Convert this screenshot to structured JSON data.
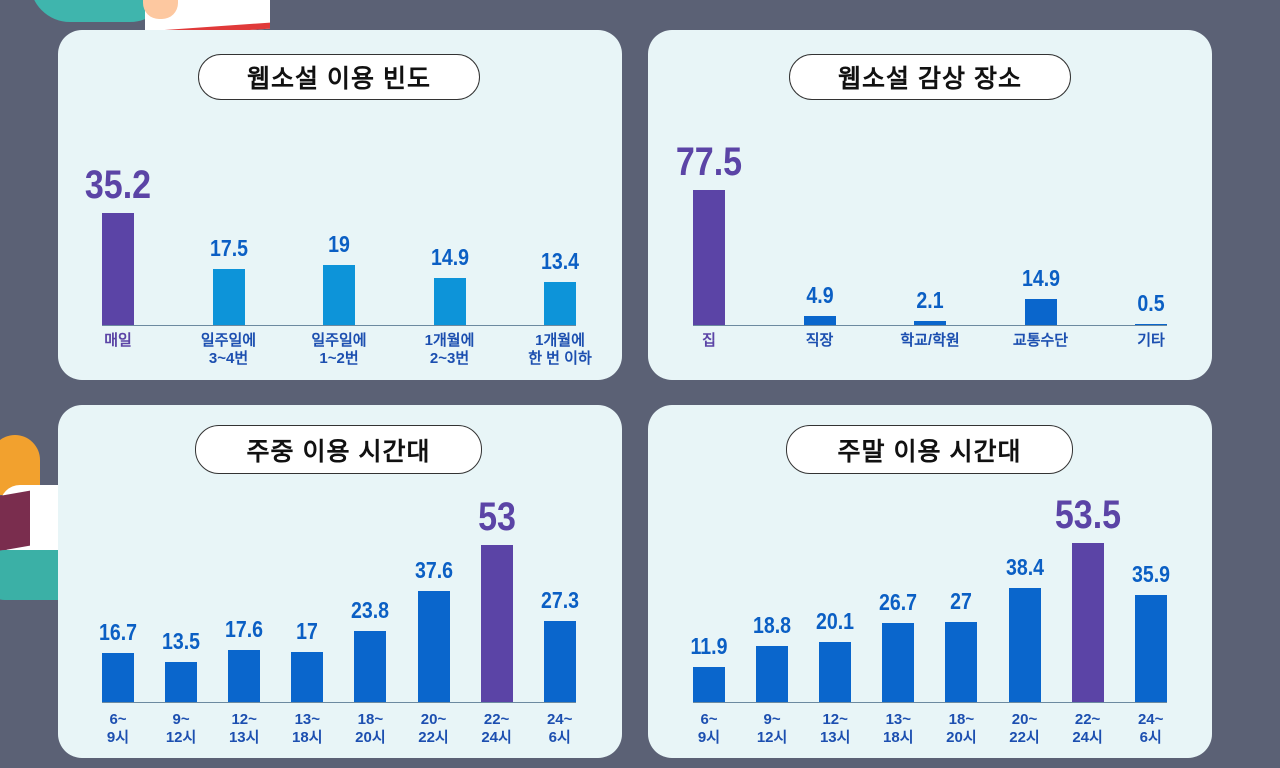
{
  "colors": {
    "highlight": "#5b44a6",
    "bar_light": "#0d94d9",
    "bar_dark": "#0a66cc",
    "label": "#1c4fb0"
  },
  "chart_data": [
    {
      "type": "bar",
      "title": "웹소설 이용 빈도",
      "categories": [
        "매일",
        "일주일에\n3~4번",
        "일주일에\n1~2번",
        "1개월에\n2~3번",
        "1개월에\n한 번 이하"
      ],
      "values": [
        35.2,
        17.5,
        19,
        14.9,
        13.4
      ],
      "value_labels": [
        "35.2",
        "17.5",
        "19",
        "14.9",
        "13.4"
      ],
      "highlight_index": 0
    },
    {
      "type": "bar",
      "title": "웹소설 감상 장소",
      "categories": [
        "집",
        "직장",
        "학교/학원",
        "교통수단",
        "기타"
      ],
      "values": [
        77.5,
        4.9,
        2.1,
        14.9,
        0.5
      ],
      "value_labels": [
        "77.5",
        "4.9",
        "2.1",
        "14.9",
        "0.5"
      ],
      "highlight_index": 0
    },
    {
      "type": "bar",
      "title": "주중 이용 시간대",
      "categories": [
        "6~\n9시",
        "9~\n12시",
        "12~\n13시",
        "13~\n18시",
        "18~\n20시",
        "20~\n22시",
        "22~\n24시",
        "24~\n6시"
      ],
      "values": [
        16.7,
        13.5,
        17.6,
        17,
        23.8,
        37.6,
        53,
        27.3
      ],
      "value_labels": [
        "16.7",
        "13.5",
        "17.6",
        "17",
        "23.8",
        "37.6",
        "53",
        "27.3"
      ],
      "highlight_index": 6
    },
    {
      "type": "bar",
      "title": "주말 이용 시간대",
      "categories": [
        "6~\n9시",
        "9~\n12시",
        "12~\n13시",
        "13~\n18시",
        "18~\n20시",
        "20~\n22시",
        "22~\n24시",
        "24~\n6시"
      ],
      "values": [
        11.9,
        18.8,
        20.1,
        26.7,
        27,
        38.4,
        53.5,
        35.9
      ],
      "value_labels": [
        "11.9",
        "18.8",
        "20.1",
        "26.7",
        "27",
        "38.4",
        "53.5",
        "35.9"
      ],
      "highlight_index": 6
    }
  ]
}
